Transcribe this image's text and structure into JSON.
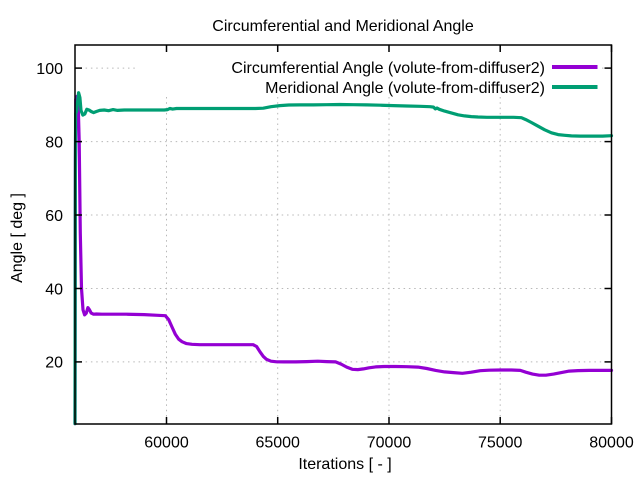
{
  "title": "Circumferential and Meridional Angle",
  "chart_data": {
    "type": "line",
    "title": "Circumferential and Meridional Angle",
    "xlabel": "Iterations [ - ]",
    "ylabel": "Angle [ deg ]",
    "xlim": [
      55890,
      80000
    ],
    "ylim": [
      3.1,
      106.3
    ],
    "xticks": [
      60000,
      65000,
      70000,
      75000,
      80000
    ],
    "yticks": [
      20,
      40,
      60,
      80,
      100
    ],
    "grid": "dotted",
    "grid_color": "#b8b8b8",
    "legend_position": "top-right-inside",
    "legend_opaque": true,
    "series": [
      {
        "name": "Circumferential Angle (volute-from-diffuser2)",
        "color": "#9400d3",
        "points": [
          [
            55890,
            3.2
          ],
          [
            55900,
            40
          ],
          [
            55910,
            75
          ],
          [
            55925,
            91.5
          ],
          [
            55975,
            92.3
          ],
          [
            56030,
            91.0
          ],
          [
            56080,
            80
          ],
          [
            56130,
            55
          ],
          [
            56180,
            40
          ],
          [
            56250,
            34.2
          ],
          [
            56320,
            32.8
          ],
          [
            56400,
            33.3
          ],
          [
            56470,
            34.8
          ],
          [
            56540,
            34.2
          ],
          [
            56620,
            33.3
          ],
          [
            56720,
            33.0
          ],
          [
            56850,
            33.05
          ],
          [
            57100,
            33.0
          ],
          [
            57600,
            33.0
          ],
          [
            58200,
            33.0
          ],
          [
            59000,
            32.9
          ],
          [
            59600,
            32.7
          ],
          [
            59950,
            32.6
          ],
          [
            60100,
            31.5
          ],
          [
            60250,
            29.5
          ],
          [
            60400,
            27.5
          ],
          [
            60550,
            26.2
          ],
          [
            60700,
            25.5
          ],
          [
            60900,
            25.0
          ],
          [
            61150,
            24.8
          ],
          [
            61500,
            24.7
          ],
          [
            62000,
            24.7
          ],
          [
            62600,
            24.7
          ],
          [
            63200,
            24.7
          ],
          [
            63900,
            24.7
          ],
          [
            64050,
            24.2
          ],
          [
            64200,
            22.8
          ],
          [
            64350,
            21.5
          ],
          [
            64500,
            20.7
          ],
          [
            64700,
            20.2
          ],
          [
            64950,
            20.05
          ],
          [
            65300,
            20.0
          ],
          [
            65800,
            20.0
          ],
          [
            66300,
            20.1
          ],
          [
            66800,
            20.2
          ],
          [
            67200,
            20.1
          ],
          [
            67600,
            20.0
          ],
          [
            67850,
            19.4
          ],
          [
            68100,
            18.6
          ],
          [
            68350,
            18.0
          ],
          [
            68600,
            17.9
          ],
          [
            68850,
            18.1
          ],
          [
            69100,
            18.4
          ],
          [
            69400,
            18.65
          ],
          [
            69800,
            18.75
          ],
          [
            70300,
            18.75
          ],
          [
            70800,
            18.7
          ],
          [
            71300,
            18.6
          ],
          [
            71700,
            18.2
          ],
          [
            72100,
            17.7
          ],
          [
            72500,
            17.3
          ],
          [
            72900,
            17.1
          ],
          [
            73300,
            16.9
          ],
          [
            73700,
            17.2
          ],
          [
            74100,
            17.6
          ],
          [
            74500,
            17.75
          ],
          [
            75000,
            17.8
          ],
          [
            75500,
            17.8
          ],
          [
            75900,
            17.7
          ],
          [
            76150,
            17.2
          ],
          [
            76450,
            16.7
          ],
          [
            76750,
            16.4
          ],
          [
            77050,
            16.4
          ],
          [
            77400,
            16.7
          ],
          [
            77750,
            17.1
          ],
          [
            78100,
            17.5
          ],
          [
            78500,
            17.65
          ],
          [
            79000,
            17.7
          ],
          [
            79500,
            17.7
          ],
          [
            80000,
            17.7
          ]
        ]
      },
      {
        "name": "Meridional Angle (volute-from-diffuser2)",
        "color": "#009e73",
        "points": [
          [
            55890,
            3.2
          ],
          [
            55905,
            60
          ],
          [
            55915,
            87.5
          ],
          [
            55960,
            88.3
          ],
          [
            56000,
            90.5
          ],
          [
            56050,
            93.3
          ],
          [
            56110,
            92.0
          ],
          [
            56160,
            88.5
          ],
          [
            56240,
            87.2
          ],
          [
            56330,
            87.5
          ],
          [
            56420,
            88.8
          ],
          [
            56520,
            88.6
          ],
          [
            56620,
            88.2
          ],
          [
            56720,
            87.9
          ],
          [
            56850,
            88.2
          ],
          [
            57000,
            88.5
          ],
          [
            57200,
            88.6
          ],
          [
            57400,
            88.4
          ],
          [
            57600,
            88.7
          ],
          [
            57800,
            88.5
          ],
          [
            58100,
            88.6
          ],
          [
            59000,
            88.6
          ],
          [
            59900,
            88.6
          ],
          [
            60050,
            88.7
          ],
          [
            60150,
            89.0
          ],
          [
            60280,
            88.85
          ],
          [
            60450,
            89.0
          ],
          [
            61000,
            89.0
          ],
          [
            62000,
            89.0
          ],
          [
            63000,
            89.0
          ],
          [
            64000,
            89.0
          ],
          [
            64350,
            89.1
          ],
          [
            64700,
            89.5
          ],
          [
            65100,
            89.8
          ],
          [
            65500,
            89.95
          ],
          [
            66000,
            90.0
          ],
          [
            66600,
            90.0
          ],
          [
            67200,
            90.05
          ],
          [
            67800,
            90.1
          ],
          [
            68400,
            90.05
          ],
          [
            69000,
            90.0
          ],
          [
            69600,
            89.9
          ],
          [
            70200,
            89.8
          ],
          [
            70800,
            89.7
          ],
          [
            71400,
            89.6
          ],
          [
            71850,
            89.5
          ],
          [
            72000,
            89.4
          ],
          [
            72080,
            88.9
          ],
          [
            72160,
            89.15
          ],
          [
            72260,
            88.8
          ],
          [
            72500,
            88.3
          ],
          [
            72800,
            87.8
          ],
          [
            73100,
            87.3
          ],
          [
            73400,
            87.0
          ],
          [
            73700,
            86.8
          ],
          [
            74000,
            86.7
          ],
          [
            74400,
            86.6
          ],
          [
            75000,
            86.6
          ],
          [
            75600,
            86.6
          ],
          [
            75950,
            86.5
          ],
          [
            76150,
            86.0
          ],
          [
            76400,
            85.2
          ],
          [
            76700,
            84.2
          ],
          [
            77000,
            83.2
          ],
          [
            77300,
            82.4
          ],
          [
            77600,
            81.9
          ],
          [
            77900,
            81.7
          ],
          [
            78200,
            81.55
          ],
          [
            78600,
            81.5
          ],
          [
            79200,
            81.5
          ],
          [
            79600,
            81.5
          ],
          [
            80000,
            81.6
          ]
        ]
      }
    ]
  }
}
